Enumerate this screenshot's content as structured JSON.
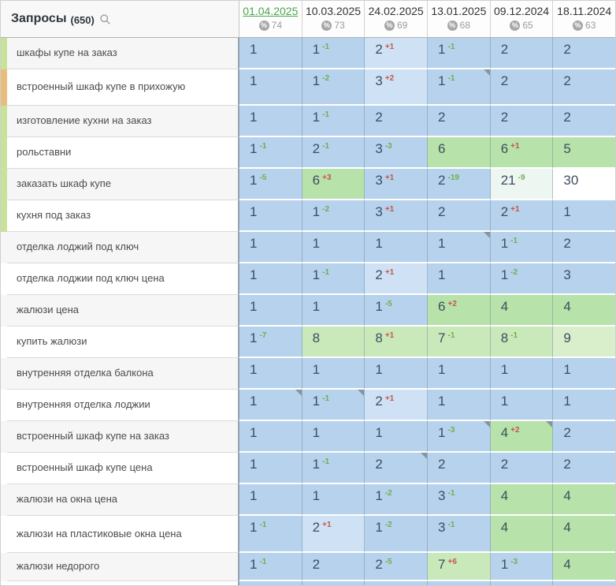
{
  "table": {
    "title": "Запросы",
    "count": "(650)",
    "search_icon": "magnifier",
    "percent_icon": "%",
    "columns": [
      {
        "date": "01.04.2025",
        "visibility": "74",
        "active": true
      },
      {
        "date": "10.03.2025",
        "visibility": "73",
        "active": false
      },
      {
        "date": "24.02.2025",
        "visibility": "69",
        "active": false
      },
      {
        "date": "13.01.2025",
        "visibility": "68",
        "active": false
      },
      {
        "date": "09.12.2024",
        "visibility": "65",
        "active": false
      },
      {
        "date": "18.11.2024",
        "visibility": "63",
        "active": false
      }
    ],
    "rows": [
      {
        "label": "шкафы купе на заказ",
        "stripe": "green",
        "cells": [
          {
            "v": "1"
          },
          {
            "v": "1",
            "d": "-1"
          },
          {
            "v": "2",
            "d": "+1",
            "bg": "bl"
          },
          {
            "v": "1",
            "d": "-1"
          },
          {
            "v": "2"
          },
          {
            "v": "2"
          }
        ]
      },
      {
        "label": "встроенный шкаф купе в прихожую",
        "stripe": "orange",
        "tall": true,
        "cells": [
          {
            "v": "1"
          },
          {
            "v": "1",
            "d": "-2"
          },
          {
            "v": "3",
            "d": "+2",
            "bg": "bl"
          },
          {
            "v": "1",
            "d": "-1",
            "tri": true
          },
          {
            "v": "2"
          },
          {
            "v": "2"
          }
        ]
      },
      {
        "label": "изготовление кухни на заказ",
        "stripe": "green",
        "cells": [
          {
            "v": "1"
          },
          {
            "v": "1",
            "d": "-1"
          },
          {
            "v": "2"
          },
          {
            "v": "2"
          },
          {
            "v": "2"
          },
          {
            "v": "2"
          }
        ]
      },
      {
        "label": "рольставни",
        "stripe": "green",
        "cells": [
          {
            "v": "1",
            "d": "-1"
          },
          {
            "v": "2",
            "d": "-1"
          },
          {
            "v": "3",
            "d": "-3"
          },
          {
            "v": "6",
            "bg": "g"
          },
          {
            "v": "6",
            "d": "+1",
            "bg": "g"
          },
          {
            "v": "5",
            "bg": "g"
          }
        ]
      },
      {
        "label": "заказать шкаф купе",
        "stripe": "green",
        "cells": [
          {
            "v": "1",
            "d": "-5"
          },
          {
            "v": "6",
            "d": "+3",
            "bg": "g"
          },
          {
            "v": "3",
            "d": "+1"
          },
          {
            "v": "2",
            "d": "-19"
          },
          {
            "v": "21",
            "d": "-9",
            "bg": "pw"
          },
          {
            "v": "30",
            "bg": "w"
          }
        ]
      },
      {
        "label": "кухня под заказ",
        "stripe": "green",
        "cells": [
          {
            "v": "1"
          },
          {
            "v": "1",
            "d": "-2"
          },
          {
            "v": "3",
            "d": "+1"
          },
          {
            "v": "2"
          },
          {
            "v": "2",
            "d": "+1"
          },
          {
            "v": "1"
          }
        ]
      },
      {
        "label": "отделка лоджий под ключ",
        "stripe": "none",
        "cells": [
          {
            "v": "1"
          },
          {
            "v": "1"
          },
          {
            "v": "1"
          },
          {
            "v": "1",
            "tri": true
          },
          {
            "v": "1",
            "d": "-1"
          },
          {
            "v": "2"
          }
        ]
      },
      {
        "label": "отделка лоджии под ключ цена",
        "stripe": "none",
        "cells": [
          {
            "v": "1"
          },
          {
            "v": "1",
            "d": "-1"
          },
          {
            "v": "2",
            "d": "+1",
            "bg": "bl"
          },
          {
            "v": "1"
          },
          {
            "v": "1",
            "d": "-2"
          },
          {
            "v": "3"
          }
        ]
      },
      {
        "label": "жалюзи цена",
        "stripe": "none",
        "cells": [
          {
            "v": "1"
          },
          {
            "v": "1"
          },
          {
            "v": "1",
            "d": "-5"
          },
          {
            "v": "6",
            "d": "+2",
            "bg": "g"
          },
          {
            "v": "4",
            "bg": "g"
          },
          {
            "v": "4",
            "bg": "g"
          }
        ]
      },
      {
        "label": "купить жалюзи",
        "stripe": "none",
        "cells": [
          {
            "v": "1",
            "d": "-7"
          },
          {
            "v": "8",
            "bg": "gl"
          },
          {
            "v": "8",
            "d": "+1",
            "bg": "gl"
          },
          {
            "v": "7",
            "d": "-1",
            "bg": "gl"
          },
          {
            "v": "8",
            "d": "-1",
            "bg": "gl"
          },
          {
            "v": "9",
            "bg": "g2"
          }
        ]
      },
      {
        "label": "внутренняя отделка балкона",
        "stripe": "none",
        "cells": [
          {
            "v": "1"
          },
          {
            "v": "1"
          },
          {
            "v": "1"
          },
          {
            "v": "1"
          },
          {
            "v": "1"
          },
          {
            "v": "1"
          }
        ]
      },
      {
        "label": "внутренняя отделка лоджии",
        "stripe": "none",
        "cells": [
          {
            "v": "1",
            "tri": true
          },
          {
            "v": "1",
            "d": "-1",
            "tri": true
          },
          {
            "v": "2",
            "d": "+1",
            "bg": "bl"
          },
          {
            "v": "1"
          },
          {
            "v": "1"
          },
          {
            "v": "1"
          }
        ]
      },
      {
        "label": "встроенный шкаф купе на заказ",
        "stripe": "none",
        "cells": [
          {
            "v": "1"
          },
          {
            "v": "1"
          },
          {
            "v": "1"
          },
          {
            "v": "1",
            "d": "-3",
            "tri": true
          },
          {
            "v": "4",
            "d": "+2",
            "bg": "g",
            "tri": true
          },
          {
            "v": "2"
          }
        ]
      },
      {
        "label": "встроенный шкаф купе цена",
        "stripe": "none",
        "cells": [
          {
            "v": "1"
          },
          {
            "v": "1",
            "d": "-1"
          },
          {
            "v": "2",
            "tri": true
          },
          {
            "v": "2"
          },
          {
            "v": "2"
          },
          {
            "v": "2"
          }
        ]
      },
      {
        "label": "жалюзи на окна цена",
        "stripe": "none",
        "cells": [
          {
            "v": "1"
          },
          {
            "v": "1"
          },
          {
            "v": "1",
            "d": "-2"
          },
          {
            "v": "3",
            "d": "-1"
          },
          {
            "v": "4",
            "bg": "g"
          },
          {
            "v": "4",
            "bg": "g"
          }
        ]
      },
      {
        "label": "жалюзи на пластиковые окна цена",
        "stripe": "none",
        "tall2": true,
        "cells": [
          {
            "v": "1",
            "d": "-1"
          },
          {
            "v": "2",
            "d": "+1",
            "bg": "bl"
          },
          {
            "v": "1",
            "d": "-2"
          },
          {
            "v": "3",
            "d": "-1"
          },
          {
            "v": "4",
            "bg": "g"
          },
          {
            "v": "4",
            "bg": "g"
          }
        ]
      },
      {
        "label": "жалюзи недорого",
        "stripe": "none",
        "cut": true,
        "cells": [
          {
            "v": "1",
            "d": "-1"
          },
          {
            "v": "2"
          },
          {
            "v": "2",
            "d": "-5"
          },
          {
            "v": "7",
            "d": "+6",
            "bg": "gl"
          },
          {
            "v": "1",
            "d": "-3"
          },
          {
            "v": "4",
            "bg": "g"
          }
        ]
      }
    ]
  },
  "colors": {
    "cell_bg": {
      "b": "#b6d2ec",
      "bl": "#cfe2f5",
      "g": "#b7e2a9",
      "gl": "#c9e9ba",
      "g2": "#d9efcc",
      "pw": "#eef6f1",
      "w": "#ffffff"
    },
    "delta_improve_green": "#6fae4e",
    "delta_worsen_red": "#c4574a",
    "active_date_green": "#4da64d",
    "stripe_green": "#c9e29b",
    "stripe_orange": "#e9bd7e"
  }
}
